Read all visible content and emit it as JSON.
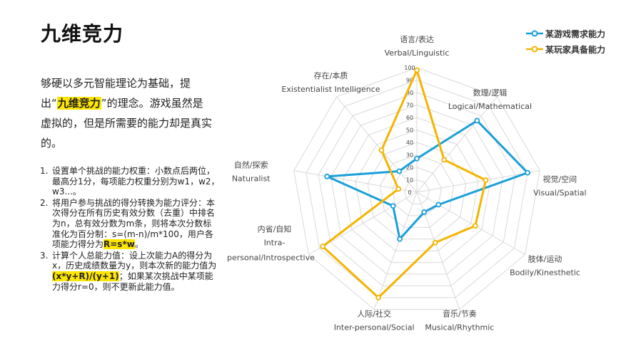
{
  "page": {
    "title": "九维竞力",
    "intro_before": "够硬以多元智能理论为基础，提出“",
    "intro_highlight": "九维竞力",
    "intro_after": "”的理念。游戏虽然是虚拟的，但是所需要的能力却是真实的。"
  },
  "steps": [
    {
      "num": "1.",
      "text": "设置单个挑战的能力权重：小数点后两位，最高分1分，每项能力权重分别为w1，w2，w3...。"
    },
    {
      "num": "2.",
      "text": "将用户参与挑战的得分转换为能力评分：本次得分在所有历史有效分数（去重）中排名为n，总有效分数为m条，则将本次分数标准化为百分制：s=(m-n)/m*100，用户各项能力得分为",
      "highlight": "R=s*w",
      "after": "。"
    },
    {
      "num": "3.",
      "text": "计算个人总能力值：设上次能力A的得分为x，历史成绩数量为y，则本次新的能力值为",
      "highlight": "(x*y+R)/(y+1)",
      "after": "；如果某次挑战中某项能力得分r=0，则不更新此能力值。"
    }
  ],
  "colors": {
    "series1": "#1a9fd9",
    "series2": "#f5b400",
    "grid": "#d9d9d9",
    "highlight": "#ffe600"
  },
  "chart_data": {
    "type": "radar",
    "axes": [
      {
        "zh": "语言/表达",
        "en": "Verbal/Linguistic"
      },
      {
        "zh": "数理/逻辑",
        "en": "Logical/Mathematical"
      },
      {
        "zh": "视觉/空间",
        "en": "Visual/Spatial"
      },
      {
        "zh": "肢体/运动",
        "en": "Bodily/Kinesthetic"
      },
      {
        "zh": "音乐/节奏",
        "en": "Musical/Rhythmic"
      },
      {
        "zh": "人际/社交",
        "en": "Inter-personal/Social"
      },
      {
        "zh": "内省/自知",
        "en": "Intra-personal/Introspective"
      },
      {
        "zh": "自然/探索",
        "en": "Naturalist"
      },
      {
        "zh": "存在/本质",
        "en": "Existentialist Intelligence"
      }
    ],
    "ticks": [
      0,
      10,
      20,
      30,
      40,
      50,
      60,
      70,
      80,
      90,
      100
    ],
    "range": [
      0,
      100
    ],
    "series": [
      {
        "name": "某游戏需求能力",
        "values": [
          27,
          75,
          90,
          20,
          17,
          40,
          22,
          73,
          22
        ]
      },
      {
        "name": "某玩家具备能力",
        "values": [
          98,
          34,
          56,
          54,
          43,
          90,
          87,
          15,
          44
        ]
      }
    ]
  }
}
